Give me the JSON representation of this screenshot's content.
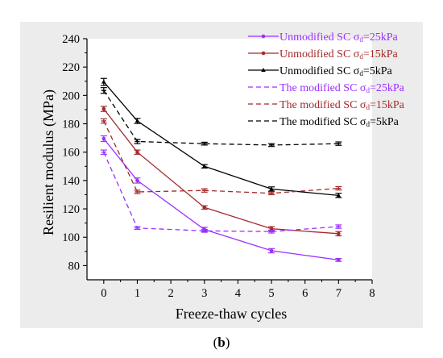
{
  "chart_data": {
    "type": "line",
    "xlabel": "Freeze-thaw cycles",
    "ylabel": "Resilient modulus (MPa)",
    "xlim": [
      -0.5,
      8
    ],
    "ylim": [
      70,
      240
    ],
    "x_ticks": [
      0,
      1,
      2,
      3,
      4,
      5,
      6,
      7,
      8
    ],
    "y_ticks": [
      80,
      100,
      120,
      140,
      160,
      180,
      200,
      220,
      240
    ],
    "x": [
      0,
      1,
      3,
      5,
      7
    ],
    "legend_position": "top-right",
    "grid": false,
    "series": [
      {
        "name": "Unmodified SC σd=25kPa",
        "name_main": "Unmodified SC σ",
        "name_sub": "d",
        "name_tail": "=25kPa",
        "color": "#9b30ff",
        "line_style": "solid",
        "marker": "dot",
        "values": [
          169.5,
          140,
          105.5,
          90.5,
          84
        ],
        "errors": [
          2,
          1.8,
          1.5,
          1.5,
          1
        ]
      },
      {
        "name": "Unmodified SC σd=15kPa",
        "name_main": "Unmodified SC σ",
        "name_sub": "d",
        "name_tail": "=15kPa",
        "color": "#a52a2a",
        "line_style": "solid",
        "marker": "dot",
        "values": [
          190.5,
          160,
          121,
          106,
          102.5
        ],
        "errors": [
          1.8,
          1.5,
          1.2,
          1.5,
          1.5
        ]
      },
      {
        "name": "Unmodified SC σd=5kPa",
        "name_main": "Unmodified SC σ",
        "name_sub": "d",
        "name_tail": "=5kPa",
        "color": "#000000",
        "line_style": "solid",
        "marker": "triangle",
        "values": [
          209.5,
          182,
          150,
          134,
          129.5
        ],
        "errors": [
          2.5,
          1.8,
          1.2,
          1.5,
          1.5
        ]
      },
      {
        "name": "The modified SC σd=25kPa",
        "name_main": "The modified SC σ",
        "name_sub": "d",
        "name_tail": "=25kPa",
        "color": "#9b30ff",
        "line_style": "dashed",
        "marker": "none",
        "values": [
          160,
          106.5,
          104.5,
          104,
          107.5
        ],
        "errors": [
          1.5,
          1,
          1,
          1,
          1.2
        ]
      },
      {
        "name": "The modified SC σd=15kPa",
        "name_main": "The modified SC σ",
        "name_sub": "d",
        "name_tail": "=15kPa",
        "color": "#a52a2a",
        "line_style": "dashed",
        "marker": "none",
        "values": [
          182,
          132,
          133,
          131,
          134.5
        ],
        "errors": [
          1.5,
          1.2,
          1.2,
          1,
          1.2
        ]
      },
      {
        "name": "The modified SC σd=5kPa",
        "name_main": "The modified SC σ",
        "name_sub": "d",
        "name_tail": "=5kPa",
        "color": "#000000",
        "line_style": "dashed",
        "marker": "none",
        "values": [
          203.5,
          167.5,
          166,
          165,
          166
        ],
        "errors": [
          2,
          1.5,
          1,
          1,
          1.2
        ]
      }
    ]
  },
  "caption": {
    "open": "(",
    "letter": "b",
    "close": ")"
  }
}
